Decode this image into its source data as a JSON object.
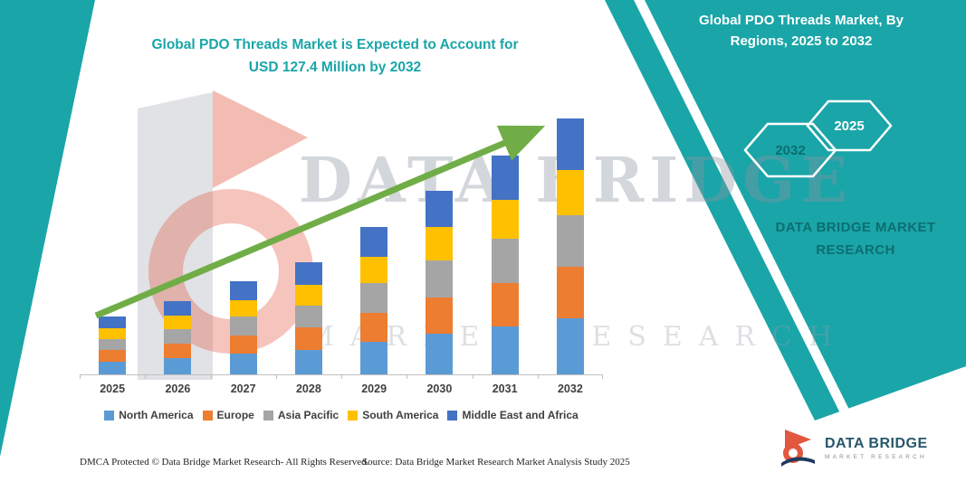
{
  "colors": {
    "teal": "#1aa5a8",
    "teal-dark": "#0d6e71",
    "arrow": "#70ad47",
    "axis": "#c0c0c0",
    "label": "#3f3f3f"
  },
  "title": {
    "text": "Global PDO Threads Market is Expected to Account for USD 127.4 Million by 2032"
  },
  "banner": {
    "title": "Global PDO Threads Market, By Regions, 2025 to 2032"
  },
  "hexagons": {
    "left_year": "2032",
    "right_year": "2025"
  },
  "side_brand": {
    "text": "DATA BRIDGE MARKET RESEARCH"
  },
  "watermark": {
    "line1": "DATA BRIDGE",
    "line2": "MARKET RESEARCH"
  },
  "footer": {
    "dmca": "DMCA Protected © Data Bridge Market Research-  All Rights Reserved.",
    "source": "Source: Data Bridge Market Research  Market Analysis Study 2025"
  },
  "logo": {
    "name": "DATA BRIDGE",
    "tagline": "MARKET RESEARCH"
  },
  "chart_data": {
    "type": "bar",
    "stacked": true,
    "categories": [
      "2025",
      "2026",
      "2027",
      "2028",
      "2029",
      "2030",
      "2031",
      "2032"
    ],
    "series": [
      {
        "name": "North America",
        "color": "#5b9bd5",
        "values": [
          6.3,
          8.0,
          10.2,
          12.2,
          16.1,
          20.1,
          23.9,
          28.0
        ]
      },
      {
        "name": "Europe",
        "color": "#ed7d31",
        "values": [
          5.7,
          7.3,
          9.3,
          11.1,
          14.6,
          18.3,
          21.8,
          25.5
        ]
      },
      {
        "name": "Asia Pacific",
        "color": "#a5a5a5",
        "values": [
          5.7,
          7.3,
          9.3,
          11.1,
          14.6,
          18.3,
          21.8,
          25.5
        ]
      },
      {
        "name": "South America",
        "color": "#ffc000",
        "values": [
          5.2,
          6.6,
          8.3,
          10.0,
          13.2,
          16.5,
          19.6,
          22.9
        ]
      },
      {
        "name": "Middle East and Africa",
        "color": "#4472c4",
        "values": [
          5.8,
          7.2,
          9.2,
          11.2,
          14.7,
          18.2,
          21.7,
          25.5
        ]
      }
    ],
    "totals": [
      28.7,
      36.4,
      46.3,
      55.6,
      73.2,
      91.4,
      108.8,
      127.4
    ],
    "ylim": [
      0,
      135
    ],
    "xlabel": "",
    "ylabel": "",
    "grid": false,
    "legend_position": "bottom",
    "annotations": [
      "upward green trend arrow across bars"
    ]
  }
}
